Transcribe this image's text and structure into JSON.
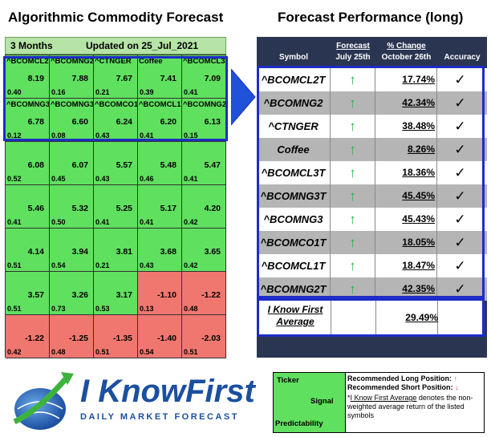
{
  "titles": {
    "left": "Algorithmic Commodity Forecast",
    "right": "Forecast Performance (long)"
  },
  "grid": {
    "period": "3 Months",
    "updated": "Updated on 25_Jul_2021",
    "cells": [
      {
        "symbol": "^BCOMCL2T",
        "signal": "8.19",
        "predictability": "0.40",
        "color": "green"
      },
      {
        "symbol": "^BCOMNG2",
        "signal": "7.88",
        "predictability": "0.16",
        "color": "green"
      },
      {
        "symbol": "^CTNGER",
        "signal": "7.67",
        "predictability": "0.21",
        "color": "green"
      },
      {
        "symbol": "Coffee",
        "signal": "7.41",
        "predictability": "0.39",
        "color": "green"
      },
      {
        "symbol": "^BCOMCL3T",
        "signal": "7.09",
        "predictability": "0.41",
        "color": "green"
      },
      {
        "symbol": "^BCOMNG3T",
        "signal": "6.78",
        "predictability": "0.12",
        "color": "green"
      },
      {
        "symbol": "^BCOMNG3",
        "signal": "6.60",
        "predictability": "0.08",
        "color": "green"
      },
      {
        "symbol": "^BCOMCO1T",
        "signal": "6.24",
        "predictability": "0.43",
        "color": "green"
      },
      {
        "symbol": "^BCOMCL1T",
        "signal": "6.20",
        "predictability": "0.41",
        "color": "green"
      },
      {
        "symbol": "^BCOMNG2T",
        "signal": "6.13",
        "predictability": "0.15",
        "color": "green"
      },
      {
        "symbol": "",
        "signal": "6.08",
        "predictability": "0.52",
        "color": "green"
      },
      {
        "symbol": "",
        "signal": "6.07",
        "predictability": "0.45",
        "color": "green"
      },
      {
        "symbol": "",
        "signal": "5.57",
        "predictability": "0.43",
        "color": "green"
      },
      {
        "symbol": "",
        "signal": "5.48",
        "predictability": "0.46",
        "color": "green"
      },
      {
        "symbol": "",
        "signal": "5.47",
        "predictability": "0.41",
        "color": "green"
      },
      {
        "symbol": "",
        "signal": "5.46",
        "predictability": "0.41",
        "color": "green"
      },
      {
        "symbol": "",
        "signal": "5.32",
        "predictability": "0.50",
        "color": "green"
      },
      {
        "symbol": "",
        "signal": "5.25",
        "predictability": "0.41",
        "color": "green"
      },
      {
        "symbol": "",
        "signal": "5.17",
        "predictability": "0.41",
        "color": "green"
      },
      {
        "symbol": "",
        "signal": "4.20",
        "predictability": "0.42",
        "color": "green"
      },
      {
        "symbol": "",
        "signal": "4.14",
        "predictability": "0.51",
        "color": "green"
      },
      {
        "symbol": "",
        "signal": "3.94",
        "predictability": "0.54",
        "color": "green"
      },
      {
        "symbol": "",
        "signal": "3.81",
        "predictability": "0.21",
        "color": "green"
      },
      {
        "symbol": "",
        "signal": "3.68",
        "predictability": "0.43",
        "color": "green"
      },
      {
        "symbol": "",
        "signal": "3.65",
        "predictability": "0.42",
        "color": "green"
      },
      {
        "symbol": "",
        "signal": "3.57",
        "predictability": "0.51",
        "color": "green"
      },
      {
        "symbol": "",
        "signal": "3.26",
        "predictability": "0.73",
        "color": "green"
      },
      {
        "symbol": "",
        "signal": "3.17",
        "predictability": "0.53",
        "color": "green"
      },
      {
        "symbol": "",
        "signal": "-1.10",
        "predictability": "0.13",
        "color": "red"
      },
      {
        "symbol": "",
        "signal": "-1.22",
        "predictability": "0.48",
        "color": "red"
      },
      {
        "symbol": "",
        "signal": "-1.22",
        "predictability": "0.42",
        "color": "red"
      },
      {
        "symbol": "",
        "signal": "-1.25",
        "predictability": "0.48",
        "color": "red"
      },
      {
        "symbol": "",
        "signal": "-1.35",
        "predictability": "0.51",
        "color": "red"
      },
      {
        "symbol": "",
        "signal": "-1.40",
        "predictability": "0.54",
        "color": "red"
      },
      {
        "symbol": "",
        "signal": "-2.03",
        "predictability": "0.51",
        "color": "red"
      }
    ]
  },
  "table": {
    "headers": {
      "symbol": "Symbol",
      "forecast": "Forecast",
      "forecast_date": "July 25th",
      "change": "% Change",
      "change_date": "October 26th",
      "accuracy": "Accuracy"
    },
    "rows": [
      {
        "symbol": "^BCOMCL2T",
        "change": "17.74%",
        "forecast_icon": "up-arrow-icon",
        "accuracy": "✓"
      },
      {
        "symbol": "^BCOMNG2",
        "change": "42.34%",
        "forecast_icon": "up-arrow-icon",
        "accuracy": "✓"
      },
      {
        "symbol": "^CTNGER",
        "change": "38.48%",
        "forecast_icon": "up-arrow-icon",
        "accuracy": "✓"
      },
      {
        "symbol": "Coffee",
        "change": "8.26%",
        "forecast_icon": "up-arrow-icon",
        "accuracy": "✓"
      },
      {
        "symbol": "^BCOMCL3T",
        "change": "18.36%",
        "forecast_icon": "up-arrow-icon",
        "accuracy": "✓"
      },
      {
        "symbol": "^BCOMNG3T",
        "change": "45.45%",
        "forecast_icon": "up-arrow-icon",
        "accuracy": "✓"
      },
      {
        "symbol": "^BCOMNG3",
        "change": "45.43%",
        "forecast_icon": "up-arrow-icon",
        "accuracy": "✓"
      },
      {
        "symbol": "^BCOMCO1T",
        "change": "18.05%",
        "forecast_icon": "up-arrow-icon",
        "accuracy": "✓"
      },
      {
        "symbol": "^BCOMCL1T",
        "change": "18.47%",
        "forecast_icon": "up-arrow-icon",
        "accuracy": "✓"
      },
      {
        "symbol": "^BCOMNG2T",
        "change": "42.35%",
        "forecast_icon": "up-arrow-icon",
        "accuracy": "✓"
      }
    ],
    "average": {
      "label_line1": "I Know First",
      "label_line2": "Average",
      "value": "29.49%"
    }
  },
  "logo": {
    "name": "I KnowFirst",
    "tagline": "DAILY MARKET FORECAST"
  },
  "legend": {
    "ticker": "Ticker",
    "signal": "Signal",
    "predictability": "Predictability",
    "long_label": "Recommended Long Position:",
    "short_label": "Recommended Short Position:",
    "note_prefix": "*",
    "note_link": "I Know First Average",
    "note_text": " denotes the non-weighted average return of the listed symbols"
  },
  "colors": {
    "green": "#5fe05f",
    "red": "#f0776f",
    "navy": "#2a3551",
    "blue_frame": "#1f2cc8",
    "arrow_green": "#27b24a"
  }
}
